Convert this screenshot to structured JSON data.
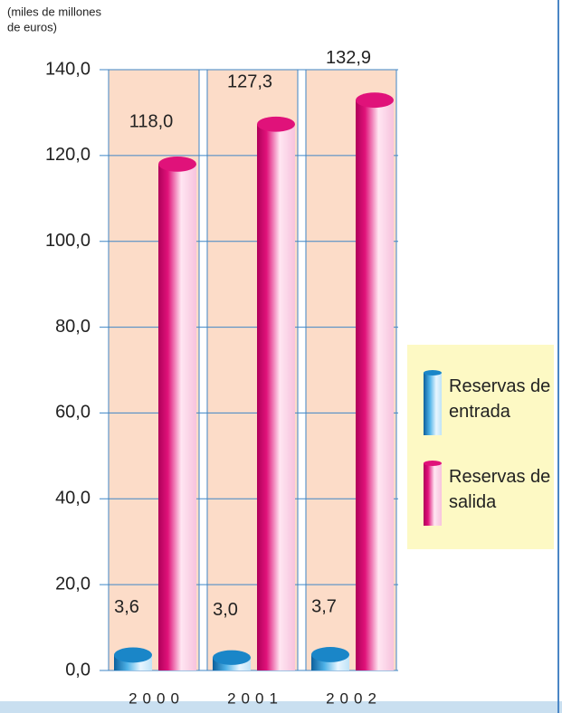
{
  "chart_data": {
    "type": "bar",
    "unit_label": [
      "(miles de millones",
      "de euros)"
    ],
    "categories": [
      "2000",
      "2001",
      "2002"
    ],
    "series": [
      {
        "name": "Reservas de entrada",
        "color": "#1a86c8",
        "values": [
          3.6,
          3.0,
          3.7
        ],
        "value_labels": [
          "3,6",
          "3,0",
          "3,7"
        ]
      },
      {
        "name": "Reservas de salida",
        "color": "#e0127a",
        "values": [
          118.0,
          127.3,
          132.9
        ],
        "value_labels": [
          "118,0",
          "127,3",
          "132,9"
        ]
      }
    ],
    "ylim": [
      0,
      140
    ],
    "yticks": [
      {
        "value": 0,
        "label": "0,0"
      },
      {
        "value": 20,
        "label": "20,0"
      },
      {
        "value": 40,
        "label": "40,0"
      },
      {
        "value": 60,
        "label": "60,0"
      },
      {
        "value": 80,
        "label": "80,0"
      },
      {
        "value": 100,
        "label": "100,0"
      },
      {
        "value": 120,
        "label": "120,0"
      },
      {
        "value": 140,
        "label": "140,0"
      }
    ],
    "grid": true
  }
}
